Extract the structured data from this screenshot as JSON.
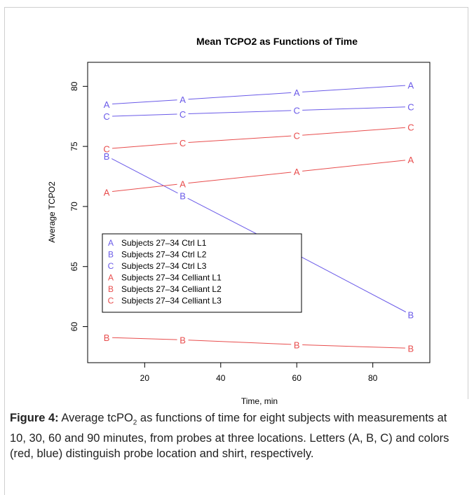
{
  "chart_data": {
    "type": "line",
    "title": "Mean TCPO2 as Functions of Time",
    "xlabel": "Time, min",
    "ylabel": "Average TCPO2",
    "xlim": [
      5,
      95
    ],
    "ylim": [
      57,
      82
    ],
    "xticks": [
      20,
      40,
      60,
      80
    ],
    "yticks": [
      60,
      65,
      70,
      75,
      80
    ],
    "grid": false,
    "legend_position": "lower-left",
    "x": [
      10,
      30,
      60,
      90
    ],
    "series": [
      {
        "name": "Subjects 27–34 Ctrl L1",
        "marker": "A",
        "color": "#6a5ae8",
        "values": [
          78.5,
          78.9,
          79.5,
          80.1
        ]
      },
      {
        "name": "Subjects 27–34 Ctrl L2",
        "marker": "B",
        "color": "#6a5ae8",
        "values": [
          74.2,
          70.9,
          66.0,
          61.0
        ]
      },
      {
        "name": "Subjects 27–34 Ctrl L3",
        "marker": "C",
        "color": "#6a5ae8",
        "values": [
          77.5,
          77.7,
          78.0,
          78.3
        ]
      },
      {
        "name": "Subjects 27–34 Celliant L1",
        "marker": "A",
        "color": "#e84d4d",
        "values": [
          71.2,
          71.9,
          72.9,
          73.9
        ]
      },
      {
        "name": "Subjects 27–34 Celliant L2",
        "marker": "B",
        "color": "#e84d4d",
        "values": [
          59.1,
          58.9,
          58.5,
          58.2
        ]
      },
      {
        "name": "Subjects 27–34 Celliant L3",
        "marker": "C",
        "color": "#e84d4d",
        "values": [
          74.8,
          75.3,
          75.9,
          76.6
        ]
      }
    ]
  },
  "caption": {
    "label": "Figure 4:",
    "text_before_sub": " Average tcPO",
    "sub": "2",
    "text_after_sub": " as functions of time for eight subjects with measurements at 10, 30, 60 and 90 minutes, from probes at three locations. Letters (A, B, C) and colors (red, blue) distinguish probe location and shirt, respectively."
  }
}
